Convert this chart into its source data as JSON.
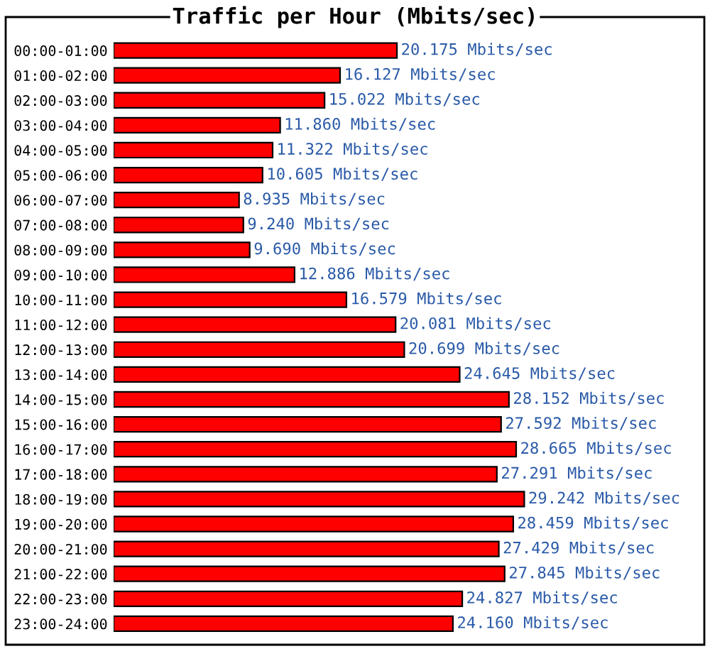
{
  "chart_data": {
    "type": "bar",
    "orientation": "horizontal",
    "title": "Traffic per Hour (Mbits/sec)",
    "categories": [
      "00:00-01:00",
      "01:00-02:00",
      "02:00-03:00",
      "03:00-04:00",
      "04:00-05:00",
      "05:00-06:00",
      "06:00-07:00",
      "07:00-08:00",
      "08:00-09:00",
      "09:00-10:00",
      "10:00-11:00",
      "11:00-12:00",
      "12:00-13:00",
      "13:00-14:00",
      "14:00-15:00",
      "15:00-16:00",
      "16:00-17:00",
      "17:00-18:00",
      "18:00-19:00",
      "19:00-20:00",
      "20:00-21:00",
      "21:00-22:00",
      "22:00-23:00",
      "23:00-24:00"
    ],
    "values": [
      20.175,
      16.127,
      15.022,
      11.86,
      11.322,
      10.605,
      8.935,
      9.24,
      9.69,
      12.886,
      16.579,
      20.081,
      20.699,
      24.645,
      28.152,
      27.592,
      28.665,
      27.291,
      29.242,
      28.459,
      27.429,
      27.845,
      24.827,
      24.16
    ],
    "value_labels": [
      "20.175 Mbits/sec",
      "16.127 Mbits/sec",
      "15.022 Mbits/sec",
      "11.860 Mbits/sec",
      "11.322 Mbits/sec",
      "10.605 Mbits/sec",
      "8.935 Mbits/sec",
      "9.240 Mbits/sec",
      "9.690 Mbits/sec",
      "12.886 Mbits/sec",
      "16.579 Mbits/sec",
      "20.081 Mbits/sec",
      "20.699 Mbits/sec",
      "24.645 Mbits/sec",
      "28.152 Mbits/sec",
      "27.592 Mbits/sec",
      "28.665 Mbits/sec",
      "27.291 Mbits/sec",
      "29.242 Mbits/sec",
      "28.459 Mbits/sec",
      "27.429 Mbits/sec",
      "27.845 Mbits/sec",
      "24.827 Mbits/sec",
      "24.160 Mbits/sec"
    ],
    "color": "#ff0000",
    "grid": false,
    "legend": false
  }
}
